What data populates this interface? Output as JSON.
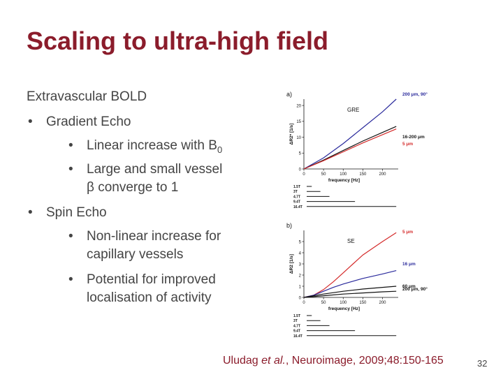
{
  "slide": {
    "title": "Scaling to ultra-high field",
    "page_number": "32",
    "bullet_char": "•",
    "body": {
      "heading": "Extravascular BOLD",
      "gradient_echo": {
        "label": "Gradient Echo",
        "sub1_text": "Linear increase with B",
        "sub1_subscript": "0",
        "sub2_line1": "Large and small vessel",
        "sub2_line2": "β converge to 1"
      },
      "spin_echo": {
        "label": "Spin Echo",
        "sub1_line1": "Non-linear increase for",
        "sub1_line2": "capillary vessels",
        "sub2_line1": "Potential for improved",
        "sub2_line2": "localisation of activity"
      }
    },
    "citation": {
      "author": "Uludag ",
      "etal": "et al.",
      "rest": ", Neuroimage, 2009;48:150-165"
    }
  },
  "colors": {
    "title": "#8b1c2b",
    "text": "#444444",
    "series_blue": "#2a2a9c",
    "series_red": "#d42a2a",
    "series_black": "#111111"
  },
  "chart_data": [
    {
      "type": "line",
      "panel_label": "a)",
      "title": "GRE",
      "xlabel": "frequency [Hz]",
      "ylabel": "ΔR2* [1/s]",
      "xlim": [
        0,
        240
      ],
      "ylim": [
        0,
        22
      ],
      "xticks": [
        0,
        50,
        100,
        150,
        200
      ],
      "yticks": [
        0,
        5,
        10,
        15,
        20
      ],
      "series": [
        {
          "name": "200 μm, 90°",
          "color": "#2a2a9c",
          "x": [
            0,
            50,
            100,
            150,
            200,
            235
          ],
          "y": [
            0,
            3.5,
            8,
            13,
            18,
            22
          ]
        },
        {
          "name": "16-200 μm",
          "color": "#111111",
          "x": [
            0,
            50,
            100,
            150,
            200,
            235
          ],
          "y": [
            0,
            2.8,
            5.8,
            8.8,
            11.5,
            13.4
          ]
        },
        {
          "name": "5 μm",
          "color": "#d42a2a",
          "x": [
            0,
            50,
            100,
            150,
            200,
            235
          ],
          "y": [
            0,
            2.6,
            5.4,
            8.2,
            10.8,
            12.6
          ]
        }
      ],
      "field_strengths": [
        {
          "label": "1.5T",
          "freq": 20
        },
        {
          "label": "3T",
          "freq": 42
        },
        {
          "label": "4.7T",
          "freq": 65
        },
        {
          "label": "9.4T",
          "freq": 130
        },
        {
          "label": "16.4T",
          "freq": 235
        }
      ]
    },
    {
      "type": "line",
      "panel_label": "b)",
      "title": "SE",
      "xlabel": "frequency [Hz]",
      "ylabel": "ΔR2 [1/s]",
      "xlim": [
        0,
        240
      ],
      "ylim": [
        0,
        6
      ],
      "xticks": [
        0,
        50,
        100,
        150,
        200
      ],
      "yticks": [
        0,
        1,
        2,
        3,
        4,
        5
      ],
      "series": [
        {
          "name": "5 μm",
          "color": "#d42a2a",
          "x": [
            0,
            25,
            50,
            75,
            100,
            125,
            150,
            175,
            200,
            235
          ],
          "y": [
            0,
            0.2,
            0.7,
            1.4,
            2.2,
            3.0,
            3.8,
            4.4,
            5.0,
            5.8
          ]
        },
        {
          "name": "16 μm",
          "color": "#2a2a9c",
          "x": [
            0,
            25,
            50,
            75,
            100,
            150,
            200,
            235
          ],
          "y": [
            0,
            0.2,
            0.55,
            0.9,
            1.2,
            1.7,
            2.1,
            2.4
          ]
        },
        {
          "name": "60 μm",
          "color": "#111111",
          "x": [
            0,
            50,
            100,
            150,
            200,
            235
          ],
          "y": [
            0,
            0.3,
            0.55,
            0.75,
            0.9,
            1.0
          ]
        },
        {
          "name": "200 μm, 90°",
          "color": "#111111",
          "x": [
            0,
            50,
            100,
            150,
            200,
            235
          ],
          "y": [
            0,
            0.15,
            0.3,
            0.4,
            0.5,
            0.55
          ]
        }
      ],
      "field_strengths": [
        {
          "label": "1.5T",
          "freq": 20
        },
        {
          "label": "3T",
          "freq": 42
        },
        {
          "label": "4.7T",
          "freq": 65
        },
        {
          "label": "9.4T",
          "freq": 130
        },
        {
          "label": "16.4T",
          "freq": 235
        }
      ]
    }
  ]
}
